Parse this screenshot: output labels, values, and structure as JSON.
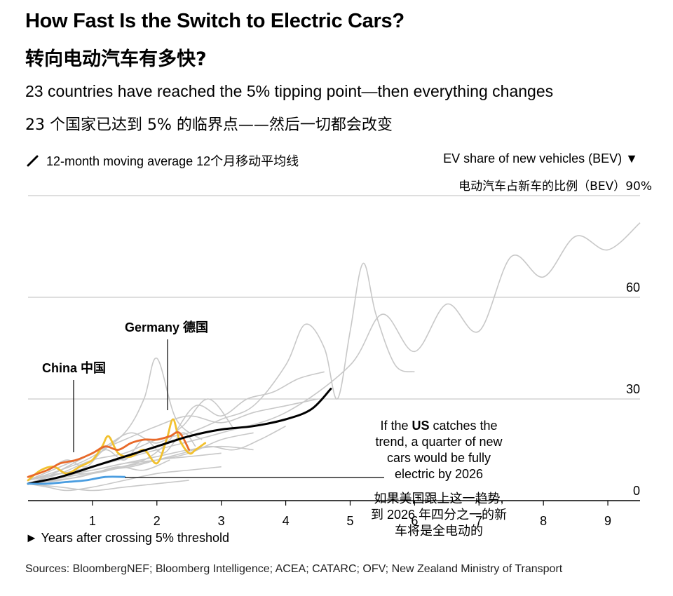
{
  "header": {
    "title": "How Fast Is the Switch to Electric Cars?",
    "title_cn": "转向电动汽车有多快?",
    "subtitle": "23 countries have reached the 5% tipping point—then everything changes",
    "subtitle_cn": "23 个国家已达到 5% 的临界点——然后一切都会改变"
  },
  "legend": {
    "moving_average": "12-month moving average 12个月移动平均线",
    "icon": "slash-icon"
  },
  "axis": {
    "y_title": "EV share of new vehicles (BEV) ▼",
    "y_title_cn": "电动汽车占新车的比例（BEV）90%",
    "x_title": "► Years after crossing 5% threshold"
  },
  "sources": "Sources: BloombergNEF; Bloomberg Intelligence; ACEA; CATARC; OFV; New Zealand Ministry of Transport",
  "chart_data": {
    "type": "line",
    "xlim": [
      0,
      9.5
    ],
    "ylim": [
      0,
      90
    ],
    "x_ticks": [
      1,
      2,
      3,
      4,
      5,
      6,
      7,
      8,
      9
    ],
    "y_ticks": [
      {
        "value": 0,
        "label": "0"
      },
      {
        "value": 30,
        "label": "30"
      },
      {
        "value": 60,
        "label": "60"
      },
      {
        "value": 90,
        "label": ""
      }
    ],
    "colors": {
      "grey": "#c8c8c8",
      "black": "#000000",
      "orange": "#e8692a",
      "yellow": "#f2c12e",
      "blue": "#4a9de0"
    },
    "labels": {
      "germany": "Germany 德国",
      "china": "China 中国",
      "us_annotation_en": [
        "If the US catches the",
        "trend, a quarter of new",
        "cars would be fully",
        "electric by 2026"
      ],
      "us_annotation_en_bold": "US",
      "us_annotation_cn": [
        "如果美国跟上这一趋势,",
        "到 2026 年四分之一的新",
        "车将是全电动的"
      ]
    },
    "series": [
      {
        "name": "Germany 德国",
        "color": "yellow",
        "x": [
          0,
          0.2,
          0.4,
          0.6,
          0.8,
          1.0,
          1.15,
          1.25,
          1.4,
          1.6,
          1.8,
          2.0,
          2.15,
          2.25,
          2.35,
          2.5,
          2.6,
          2.75
        ],
        "y": [
          6,
          9,
          10,
          8,
          10,
          12,
          16,
          19,
          14,
          13,
          15,
          11,
          18,
          24,
          18,
          14,
          15,
          17
        ]
      },
      {
        "name": "China 中国",
        "color": "orange",
        "x": [
          0,
          0.3,
          0.5,
          0.75,
          1.0,
          1.2,
          1.4,
          1.6,
          1.8,
          2.0,
          2.2,
          2.35,
          2.5
        ],
        "y": [
          7,
          9,
          11,
          12,
          14,
          16,
          15,
          17,
          18,
          18,
          19,
          20,
          15
        ]
      },
      {
        "color": "black",
        "x": [
          0,
          0.5,
          1.0,
          1.5,
          2.0,
          2.5,
          3.0,
          3.5,
          4.0,
          4.4,
          4.7
        ],
        "y": [
          5,
          7,
          10,
          13,
          16,
          19,
          21,
          22,
          24,
          27,
          33
        ]
      },
      {
        "color": "blue",
        "x": [
          0,
          0.3,
          0.6,
          0.9,
          1.2,
          1.5
        ],
        "y": [
          5,
          5,
          5.5,
          6,
          7,
          7
        ]
      }
    ],
    "grey_series": [
      {
        "x": [
          0,
          1,
          2,
          3,
          4,
          5,
          5.5,
          6,
          6.5,
          7,
          7.5,
          8,
          8.5,
          9,
          9.5
        ],
        "y": [
          6,
          10,
          15,
          20,
          26,
          40,
          55,
          44,
          58,
          50,
          72,
          66,
          78,
          74,
          82
        ]
      },
      {
        "x": [
          0,
          0.5,
          1.0,
          1.5,
          2.0,
          2.5,
          3.0,
          3.5,
          4.0,
          4.3,
          4.6,
          4.8,
          5.0,
          5.2,
          5.4,
          5.7,
          6.0
        ],
        "y": [
          5,
          8,
          12,
          14,
          18,
          20,
          24,
          28,
          40,
          52,
          45,
          30,
          50,
          70,
          55,
          40,
          38
        ]
      },
      {
        "x": [
          0,
          0.6,
          1.2,
          1.8,
          2.2,
          2.6,
          3.0,
          3.4,
          3.8,
          4.2,
          4.6
        ],
        "y": [
          5,
          7,
          9,
          12,
          18,
          28,
          25,
          30,
          32,
          36,
          38
        ]
      },
      {
        "x": [
          0,
          0.5,
          1.0,
          1.5,
          2.0,
          2.5,
          3.0,
          3.5,
          4.0,
          4.5
        ],
        "y": [
          6,
          10,
          14,
          18,
          22,
          25,
          23,
          26,
          28,
          30
        ]
      },
      {
        "x": [
          0,
          0.4,
          0.8,
          1.2,
          1.6,
          2.0,
          2.4,
          2.8,
          3.2
        ],
        "y": [
          5,
          8,
          12,
          16,
          20,
          17,
          22,
          30,
          21
        ]
      },
      {
        "x": [
          0,
          0.5,
          1.0,
          1.5,
          2.0,
          2.5,
          3.0,
          3.5
        ],
        "y": [
          5,
          7,
          9,
          11,
          13,
          15,
          16,
          15
        ]
      },
      {
        "x": [
          0,
          0.5,
          1.0,
          1.5,
          2.0,
          2.5,
          3.0
        ],
        "y": [
          6,
          8,
          8,
          10,
          12,
          13,
          14
        ]
      },
      {
        "x": [
          0,
          0.3,
          0.6,
          1.0,
          1.5,
          2.0,
          2.5,
          3.0
        ],
        "y": [
          5,
          4,
          3,
          4,
          6,
          8,
          9,
          10
        ]
      },
      {
        "x": [
          0,
          0.5,
          1.0,
          1.5,
          1.8,
          2.0,
          2.3,
          2.7
        ],
        "y": [
          6,
          9,
          13,
          20,
          30,
          42,
          24,
          18
        ]
      },
      {
        "x": [
          0,
          0.5,
          1.0,
          1.5,
          2.0,
          2.5
        ],
        "y": [
          5,
          4,
          3,
          4,
          5,
          6
        ]
      },
      {
        "x": [
          0,
          0.3,
          0.6,
          0.9,
          1.2,
          1.5,
          1.8,
          2.1,
          2.4,
          2.6
        ],
        "y": [
          7,
          9,
          12,
          10,
          15,
          12,
          18,
          14,
          20,
          16
        ]
      },
      {
        "x": [
          0,
          0.5,
          1.0,
          1.4,
          1.8,
          2.2
        ],
        "y": [
          5,
          6,
          8,
          10,
          9,
          12
        ]
      },
      {
        "x": [
          0,
          0.4,
          0.8,
          1.2,
          1.6,
          2.0,
          2.4,
          2.8,
          3.2,
          3.6,
          4.0
        ],
        "y": [
          5,
          6,
          7,
          9,
          10,
          12,
          14,
          16,
          15,
          18,
          22
        ]
      },
      {
        "x": [
          0,
          0.5,
          1.0,
          1.5,
          2.0,
          2.5,
          3.0,
          3.5
        ],
        "y": [
          6,
          8,
          9,
          11,
          12,
          14,
          18,
          20
        ]
      }
    ]
  }
}
